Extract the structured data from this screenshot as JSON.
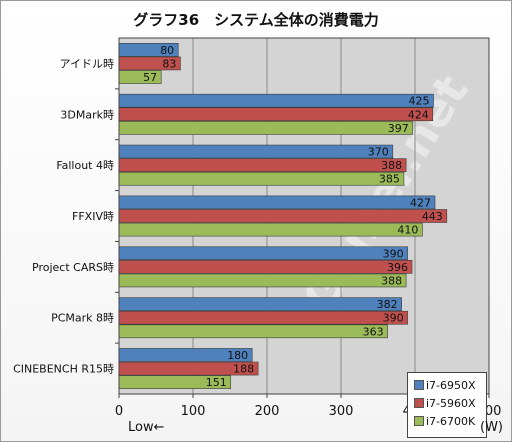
{
  "chart_data": {
    "type": "bar",
    "orientation": "horizontal",
    "title": "グラフ36　システム全体の消費電力",
    "categories": [
      "アイドル時",
      "3DMark時",
      "Fallout 4時",
      "FFXIV時",
      "Project CARS時",
      "PCMark 8時",
      "CINEBENCH R15時"
    ],
    "series": [
      {
        "name": "i7-6950X",
        "color": "#4f81bd",
        "values": [
          80,
          425,
          370,
          427,
          390,
          382,
          180
        ]
      },
      {
        "name": "i7-5960X",
        "color": "#c0504d",
        "values": [
          83,
          424,
          388,
          443,
          396,
          390,
          188
        ]
      },
      {
        "name": "i7-6700K",
        "color": "#9bbb59",
        "values": [
          57,
          397,
          385,
          410,
          388,
          363,
          151
        ]
      }
    ],
    "xlim": [
      0,
      500
    ],
    "xticks": [
      "0",
      "100",
      "200",
      "300",
      "400",
      "500"
    ],
    "xlabel_left": "Low←",
    "xlabel_unit": "(W)",
    "grid": true,
    "legend_position": "bottom-right",
    "watermark": "4Gamer.net"
  }
}
